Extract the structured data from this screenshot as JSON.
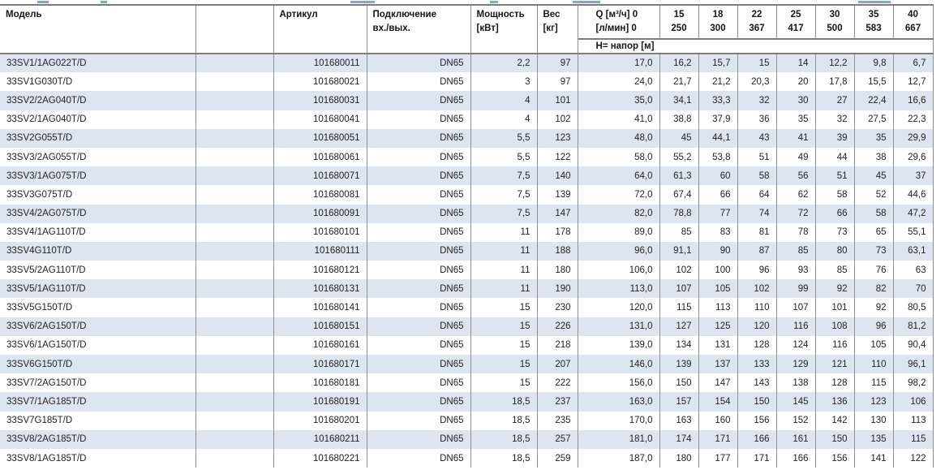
{
  "table": {
    "header": {
      "model": "Модель",
      "article": "Артикул",
      "connection_line1": "Подключение",
      "connection_line2": "вх./вых.",
      "power_line1": "Мощность",
      "power_line2": "[кВт]",
      "weight_line1": "Вес",
      "weight_line2": "[кг]",
      "q_line1": "Q [м³/ч] 0",
      "q_line2": "[л/мин] 0",
      "flow_columns": [
        {
          "m3h": "15",
          "lmin": "250"
        },
        {
          "m3h": "18",
          "lmin": "300"
        },
        {
          "m3h": "22",
          "lmin": "367"
        },
        {
          "m3h": "25",
          "lmin": "417"
        },
        {
          "m3h": "30",
          "lmin": "500"
        },
        {
          "m3h": "35",
          "lmin": "583"
        },
        {
          "m3h": "40",
          "lmin": "667"
        }
      ],
      "head_row_label": "H= напор [м]"
    },
    "rows": [
      {
        "model": "33SV1/1AG022T/D",
        "article": "101680011",
        "connection": "DN65",
        "power": "2,2",
        "weight": "97",
        "head": [
          "17,0",
          "16,2",
          "15,7",
          "15",
          "14",
          "12,2",
          "9,8",
          "6,7"
        ]
      },
      {
        "model": "33SV1G030T/D",
        "article": "101680021",
        "connection": "DN65",
        "power": "3",
        "weight": "97",
        "head": [
          "24,0",
          "21,7",
          "21,2",
          "20,3",
          "20",
          "17,8",
          "15,5",
          "12,7"
        ]
      },
      {
        "model": "33SV2/2AG040T/D",
        "article": "101680031",
        "connection": "DN65",
        "power": "4",
        "weight": "101",
        "head": [
          "35,0",
          "34,1",
          "33,3",
          "32",
          "30",
          "27",
          "22,4",
          "16,6"
        ]
      },
      {
        "model": "33SV2/1AG040T/D",
        "article": "101680041",
        "connection": "DN65",
        "power": "4",
        "weight": "102",
        "head": [
          "41,0",
          "38,8",
          "37,9",
          "36",
          "35",
          "32",
          "27,5",
          "22,3"
        ]
      },
      {
        "model": "33SV2G055T/D",
        "article": "101680051",
        "connection": "DN65",
        "power": "5,5",
        "weight": "123",
        "head": [
          "48,0",
          "45",
          "44,1",
          "43",
          "41",
          "39",
          "35",
          "29,9"
        ]
      },
      {
        "model": "33SV3/2AG055T/D",
        "article": "101680061",
        "connection": "DN65",
        "power": "5,5",
        "weight": "122",
        "head": [
          "58,0",
          "55,2",
          "53,8",
          "51",
          "49",
          "44",
          "38",
          "29,6"
        ]
      },
      {
        "model": "33SV3/1AG075T/D",
        "article": "101680071",
        "connection": "DN65",
        "power": "7,5",
        "weight": "140",
        "head": [
          "64,0",
          "61,3",
          "60",
          "58",
          "56",
          "51",
          "45",
          "37"
        ]
      },
      {
        "model": "33SV3G075T/D",
        "article": "101680081",
        "connection": "DN65",
        "power": "7,5",
        "weight": "139",
        "head": [
          "72,0",
          "67,4",
          "66",
          "64",
          "62",
          "58",
          "52",
          "44,6"
        ]
      },
      {
        "model": "33SV4/2AG075T/D",
        "article": "101680091",
        "connection": "DN65",
        "power": "7,5",
        "weight": "147",
        "head": [
          "82,0",
          "78,8",
          "77",
          "74",
          "72",
          "66",
          "58",
          "47,2"
        ]
      },
      {
        "model": "33SV4/1AG110T/D",
        "article": "101680101",
        "connection": "DN65",
        "power": "11",
        "weight": "178",
        "head": [
          "89,0",
          "85",
          "83",
          "81",
          "78",
          "73",
          "65",
          "55,1"
        ]
      },
      {
        "model": "33SV4G110T/D",
        "article": "101680111",
        "connection": "DN65",
        "power": "11",
        "weight": "188",
        "head": [
          "96,0",
          "91,1",
          "90",
          "87",
          "85",
          "80",
          "73",
          "63,1"
        ]
      },
      {
        "model": "33SV5/2AG110T/D",
        "article": "101680121",
        "connection": "DN65",
        "power": "11",
        "weight": "180",
        "head": [
          "106,0",
          "102",
          "100",
          "96",
          "93",
          "85",
          "76",
          "63"
        ]
      },
      {
        "model": "33SV5/1AG110T/D",
        "article": "101680131",
        "connection": "DN65",
        "power": "11",
        "weight": "190",
        "head": [
          "113,0",
          "107",
          "105",
          "102",
          "99",
          "92",
          "82",
          "70"
        ]
      },
      {
        "model": "33SV5G150T/D",
        "article": "101680141",
        "connection": "DN65",
        "power": "15",
        "weight": "230",
        "head": [
          "120,0",
          "115",
          "113",
          "110",
          "107",
          "101",
          "92",
          "80,5"
        ]
      },
      {
        "model": "33SV6/2AG150T/D",
        "article": "101680151",
        "connection": "DN65",
        "power": "15",
        "weight": "226",
        "head": [
          "131,0",
          "127",
          "125",
          "120",
          "116",
          "108",
          "96",
          "81,2"
        ]
      },
      {
        "model": "33SV6/1AG150T/D",
        "article": "101680161",
        "connection": "DN65",
        "power": "15",
        "weight": "218",
        "head": [
          "139,0",
          "134",
          "131",
          "128",
          "124",
          "116",
          "105",
          "90,4"
        ]
      },
      {
        "model": "33SV6G150T/D",
        "article": "101680171",
        "connection": "DN65",
        "power": "15",
        "weight": "207",
        "head": [
          "146,0",
          "139",
          "137",
          "133",
          "129",
          "121",
          "110",
          "96,1"
        ]
      },
      {
        "model": "33SV7/2AG150T/D",
        "article": "101680181",
        "connection": "DN65",
        "power": "15",
        "weight": "222",
        "head": [
          "156,0",
          "150",
          "147",
          "143",
          "138",
          "128",
          "115",
          "98,2"
        ]
      },
      {
        "model": "33SV7/1AG185T/D",
        "article": "101680191",
        "connection": "DN65",
        "power": "18,5",
        "weight": "237",
        "head": [
          "163,0",
          "157",
          "154",
          "150",
          "145",
          "136",
          "123",
          "106"
        ]
      },
      {
        "model": "33SV7G185T/D",
        "article": "101680201",
        "connection": "DN65",
        "power": "18,5",
        "weight": "235",
        "head": [
          "170,0",
          "163",
          "160",
          "156",
          "152",
          "142",
          "130",
          "113"
        ]
      },
      {
        "model": "33SV8/2AG185T/D",
        "article": "101680211",
        "connection": "DN65",
        "power": "18,5",
        "weight": "257",
        "head": [
          "181,0",
          "174",
          "171",
          "166",
          "161",
          "150",
          "135",
          "115"
        ]
      },
      {
        "model": "33SV8/1AG185T/D",
        "article": "101680221",
        "connection": "DN65",
        "power": "18,5",
        "weight": "259",
        "head": [
          "187,0",
          "180",
          "177",
          "171",
          "166",
          "156",
          "141",
          "122"
        ]
      }
    ]
  },
  "colors": {
    "row_alt_background": "#dce5f0",
    "table_border": "#8f8f8f",
    "header_rule": "#7d7d7d",
    "remnant_blue": "#5b87c5"
  }
}
